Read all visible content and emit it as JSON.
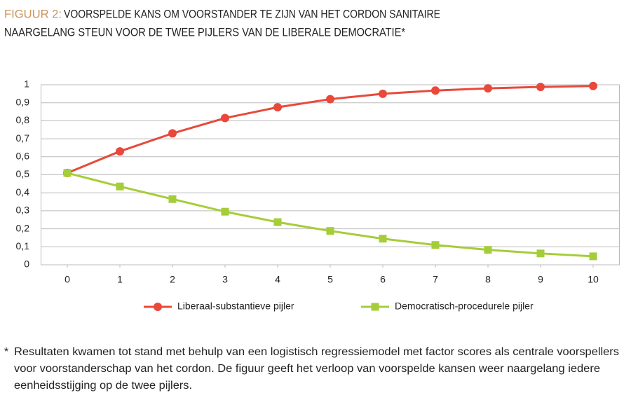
{
  "chart_data": {
    "type": "line",
    "title_prefix": "FIGUUR 2:",
    "title_lines": [
      "VOORSPELDE KANS OM VOORSTANDER TE ZIJN VAN HET CORDON SANITAIRE",
      "NAARGELANG STEUN VOOR DE TWEE PIJLERS VAN DE LIBERALE DEMOCRATIE*"
    ],
    "x": [
      0,
      1,
      2,
      3,
      4,
      5,
      6,
      7,
      8,
      9,
      10
    ],
    "xlim": [
      -0.5,
      10.5
    ],
    "xticks": [
      0,
      1,
      2,
      3,
      4,
      5,
      6,
      7,
      8,
      9,
      10
    ],
    "ylim": [
      0,
      1
    ],
    "yticks": [
      0,
      {
        "value": 0.1,
        "label": "0,1"
      },
      {
        "value": 0.2,
        "label": "0,2"
      },
      {
        "value": 0.3,
        "label": "0,3"
      },
      {
        "value": 0.4,
        "label": "0,4"
      },
      {
        "value": 0.5,
        "label": "0,5"
      },
      {
        "value": 0.6,
        "label": "0,6"
      },
      {
        "value": 0.7,
        "label": "0,7"
      },
      {
        "value": 0.8,
        "label": "0,8"
      },
      {
        "value": 0.9,
        "label": "0,9"
      },
      1
    ],
    "grid": true,
    "legend": "bottom",
    "series": [
      {
        "name": "Liberaal-substantieve pijler",
        "color": "#e8493a",
        "marker": "circle",
        "values": [
          0.51,
          0.63,
          0.73,
          0.815,
          0.875,
          0.92,
          0.95,
          0.968,
          0.98,
          0.988,
          0.993
        ]
      },
      {
        "name": "Democratisch-procedurele pijler",
        "color": "#a5cd39",
        "marker": "square",
        "values": [
          0.51,
          0.435,
          0.365,
          0.295,
          0.237,
          0.188,
          0.145,
          0.11,
          0.083,
          0.063,
          0.047
        ]
      }
    ],
    "footnote_marker": "*",
    "footnote_lines": [
      "Resultaten kwamen tot stand met behulp van een logistisch regressiemodel met factor scores als centrale voorspellers",
      "voor voorstanderschap van het cordon. De figuur geeft het verloop van voorspelde kansen weer naargelang iedere",
      "eenheidsstijging op de twee pijlers."
    ]
  }
}
